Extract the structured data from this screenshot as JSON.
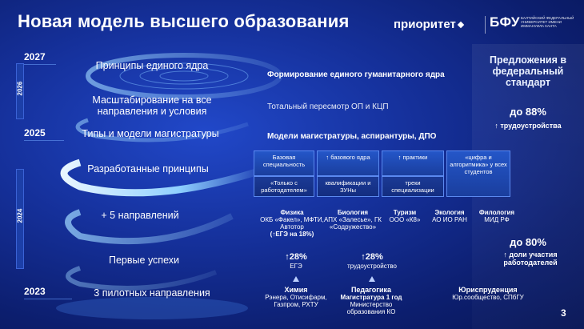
{
  "title": "Новая модель высшего образования",
  "logos": {
    "prioritet": "приоритет",
    "bfu": "БФУ",
    "bfu_sub": "Балтийский федеральный университет имени Иммануила Канта"
  },
  "timeline": {
    "label_2026": "2026",
    "label_2024": "2024"
  },
  "years": {
    "y2027": "2027",
    "y2025": "2025",
    "y2023": "2023"
  },
  "stages": {
    "principles": "Принципы единого ядра",
    "scaling": "Масштабирование  на все направления и условия",
    "types": "Типы и модели магистратуры",
    "developed": "Разработанные принципы",
    "plus5": "+ 5 направлений",
    "first_success": "Первые успехи",
    "pilot": "3 пилотных направления"
  },
  "descriptions": {
    "principles": "Формирование единого гуманитарного ядра",
    "scaling": "Тотальный пересмотр ОП и КЦП",
    "types": "Модели магистратуры, аспирантуры, ДПО"
  },
  "boxes": [
    {
      "top": "Базовая специальность",
      "bottom": "«Только с работодателем»"
    },
    {
      "top": "↑ базового ядра",
      "bottom": "квалификации и ЗУНы"
    },
    {
      "top": "↑ практики",
      "bottom": "треки специализации"
    },
    {
      "top": "«цифра и алгоритмика» у всех студентов",
      "bottom": ""
    }
  ],
  "directions_2024": [
    {
      "name": "Физика",
      "detail": "ОКБ «Факел», МФТИ, Автотор",
      "extra": "(↑ЕГЭ на 18%)"
    },
    {
      "name": "Биология",
      "detail": "АПХ «Залесье», ГК «Содружество»",
      "extra": ""
    },
    {
      "name": "Туризм",
      "detail": "ООО «К8»",
      "extra": ""
    },
    {
      "name": "Экология",
      "detail": "АО ИО РАН",
      "extra": ""
    },
    {
      "name": "Филология",
      "detail": "МИД РФ",
      "extra": ""
    }
  ],
  "success": [
    {
      "value": "↑28%",
      "label": "ЕГЭ"
    },
    {
      "value": "↑28%",
      "label": "трудоустройство"
    }
  ],
  "directions_2023": [
    {
      "name": "Химия",
      "detail": "Рэнера, Отисифарм, Газпром, РХТУ"
    },
    {
      "name": "Педагогика",
      "detail": "Магистратура 1 год",
      "extra": "Министерство образования КО"
    },
    {
      "name": "Юриспруденция",
      "detail": "Юр.сообщество, СПбГУ"
    }
  ],
  "right": {
    "proposals": "Предложения в федеральный стандарт",
    "pct88": "до 88%",
    "employment": "↑ трудоустройства",
    "pct80": "до 80%",
    "employers": "↑ доли участия работодателей"
  },
  "page_number": "3"
}
